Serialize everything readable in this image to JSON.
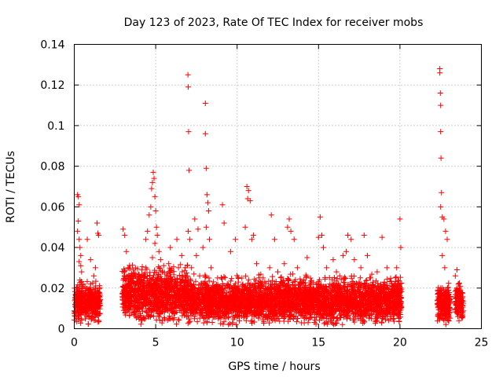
{
  "chart_data": {
    "type": "scatter",
    "title": "Day 123 of 2023, Rate Of TEC Index for receiver mobs",
    "xlabel": "GPS time / hours",
    "ylabel": "ROTI / TECUs",
    "xlim": [
      0,
      25
    ],
    "ylim": [
      0,
      0.14
    ],
    "xticks": [
      "0",
      "5",
      "10",
      "15",
      "20",
      "25"
    ],
    "yticks": [
      "0",
      "0.02",
      "0.04",
      "0.06",
      "0.08",
      "0.1",
      "0.12",
      "0.14"
    ],
    "grid": true,
    "marker": "+",
    "color": "#ff0000",
    "series": [
      {
        "points": [
          [
            0.05,
            0.012
          ],
          [
            0.1,
            0.008
          ],
          [
            0.15,
            0.02
          ],
          [
            0.2,
            0.016
          ],
          [
            0.25,
            0.005
          ],
          [
            0.3,
            0.014
          ],
          [
            0.35,
            0.024
          ],
          [
            0.4,
            0.018
          ],
          [
            0.45,
            0.01
          ],
          [
            0.5,
            0.015
          ],
          [
            0.55,
            0.022
          ],
          [
            0.6,
            0.012
          ],
          [
            0.7,
            0.009
          ],
          [
            0.8,
            0.014
          ],
          [
            0.9,
            0.011
          ],
          [
            1.0,
            0.018
          ],
          [
            1.1,
            0.013
          ],
          [
            1.2,
            0.008
          ],
          [
            1.3,
            0.02
          ],
          [
            1.4,
            0.012
          ],
          [
            0.2,
            0.066
          ],
          [
            0.25,
            0.065
          ],
          [
            0.3,
            0.061
          ],
          [
            0.25,
            0.053
          ],
          [
            0.2,
            0.048
          ],
          [
            0.3,
            0.044
          ],
          [
            0.35,
            0.04
          ],
          [
            0.4,
            0.036
          ],
          [
            0.3,
            0.033
          ],
          [
            0.45,
            0.028
          ],
          [
            0.4,
            0.031
          ],
          [
            0.8,
            0.044
          ],
          [
            1.0,
            0.034
          ],
          [
            1.2,
            0.026
          ],
          [
            1.4,
            0.052
          ],
          [
            1.45,
            0.047
          ],
          [
            1.5,
            0.046
          ],
          [
            1.3,
            0.03
          ],
          [
            1.45,
            0.008
          ],
          [
            1.5,
            0.004
          ],
          [
            3.0,
            0.049
          ],
          [
            3.1,
            0.046
          ],
          [
            3.2,
            0.038
          ],
          [
            3.3,
            0.03
          ],
          [
            3.0,
            0.014
          ],
          [
            3.2,
            0.018
          ],
          [
            3.4,
            0.011
          ],
          [
            3.6,
            0.02
          ],
          [
            3.8,
            0.014
          ],
          [
            4.0,
            0.025
          ],
          [
            4.2,
            0.018
          ],
          [
            4.4,
            0.03
          ],
          [
            4.6,
            0.022
          ],
          [
            4.8,
            0.035
          ],
          [
            4.0,
            0.01
          ],
          [
            3.5,
            0.008
          ],
          [
            4.6,
            0.056
          ],
          [
            4.7,
            0.06
          ],
          [
            4.75,
            0.069
          ],
          [
            4.8,
            0.072
          ],
          [
            4.85,
            0.077
          ],
          [
            4.9,
            0.074
          ],
          [
            4.95,
            0.065
          ],
          [
            5.0,
            0.058
          ],
          [
            5.05,
            0.05
          ],
          [
            5.1,
            0.046
          ],
          [
            4.95,
            0.042
          ],
          [
            5.2,
            0.038
          ],
          [
            5.3,
            0.034
          ],
          [
            4.5,
            0.048
          ],
          [
            4.4,
            0.044
          ],
          [
            5.2,
            0.02
          ],
          [
            5.4,
            0.028
          ],
          [
            5.6,
            0.015
          ],
          [
            5.8,
            0.032
          ],
          [
            6.0,
            0.024
          ],
          [
            6.2,
            0.018
          ],
          [
            6.4,
            0.03
          ],
          [
            6.6,
            0.036
          ],
          [
            6.8,
            0.02
          ],
          [
            5.5,
            0.012
          ],
          [
            6.1,
            0.009
          ],
          [
            6.5,
            0.012
          ],
          [
            5.9,
            0.04
          ],
          [
            6.3,
            0.044
          ],
          [
            6.98,
            0.125
          ],
          [
            7.0,
            0.119
          ],
          [
            7.02,
            0.097
          ],
          [
            7.05,
            0.078
          ],
          [
            7.0,
            0.048
          ],
          [
            7.1,
            0.044
          ],
          [
            7.2,
            0.03
          ],
          [
            7.3,
            0.02
          ],
          [
            7.5,
            0.036
          ],
          [
            7.6,
            0.049
          ],
          [
            7.4,
            0.054
          ],
          [
            7.7,
            0.026
          ],
          [
            7.9,
            0.04
          ],
          [
            8.05,
            0.111
          ],
          [
            8.05,
            0.096
          ],
          [
            8.1,
            0.079
          ],
          [
            8.15,
            0.066
          ],
          [
            8.2,
            0.062
          ],
          [
            8.25,
            0.058
          ],
          [
            8.1,
            0.05
          ],
          [
            8.3,
            0.044
          ],
          [
            8.4,
            0.03
          ],
          [
            8.6,
            0.02
          ],
          [
            8.8,
            0.025
          ],
          [
            9.0,
            0.018
          ],
          [
            8.5,
            0.012
          ],
          [
            9.1,
            0.061
          ],
          [
            9.2,
            0.052
          ],
          [
            9.6,
            0.038
          ],
          [
            9.9,
            0.044
          ],
          [
            9.4,
            0.022
          ],
          [
            9.7,
            0.015
          ],
          [
            10.0,
            0.02
          ],
          [
            10.2,
            0.012
          ],
          [
            10.6,
            0.07
          ],
          [
            10.7,
            0.068
          ],
          [
            10.65,
            0.064
          ],
          [
            10.8,
            0.063
          ],
          [
            10.5,
            0.05
          ],
          [
            10.9,
            0.044
          ],
          [
            11.0,
            0.046
          ],
          [
            11.2,
            0.032
          ],
          [
            11.4,
            0.02
          ],
          [
            11.6,
            0.025
          ],
          [
            11.8,
            0.016
          ],
          [
            12.0,
            0.03
          ],
          [
            12.1,
            0.056
          ],
          [
            12.3,
            0.044
          ],
          [
            12.5,
            0.028
          ],
          [
            12.7,
            0.018
          ],
          [
            12.9,
            0.032
          ],
          [
            13.1,
            0.05
          ],
          [
            13.2,
            0.054
          ],
          [
            13.3,
            0.048
          ],
          [
            13.5,
            0.044
          ],
          [
            13.7,
            0.03
          ],
          [
            13.9,
            0.02
          ],
          [
            14.1,
            0.024
          ],
          [
            14.3,
            0.035
          ],
          [
            14.5,
            0.016
          ],
          [
            14.7,
            0.012
          ],
          [
            15.0,
            0.045
          ],
          [
            15.2,
            0.046
          ],
          [
            15.1,
            0.055
          ],
          [
            15.3,
            0.04
          ],
          [
            15.5,
            0.03
          ],
          [
            15.7,
            0.022
          ],
          [
            15.9,
            0.034
          ],
          [
            16.1,
            0.028
          ],
          [
            16.3,
            0.026
          ],
          [
            16.5,
            0.036
          ],
          [
            16.7,
            0.038
          ],
          [
            16.8,
            0.046
          ],
          [
            17.0,
            0.044
          ],
          [
            17.2,
            0.034
          ],
          [
            17.4,
            0.022
          ],
          [
            17.6,
            0.03
          ],
          [
            17.8,
            0.046
          ],
          [
            18.0,
            0.036
          ],
          [
            18.2,
            0.025
          ],
          [
            18.4,
            0.02
          ],
          [
            18.6,
            0.028
          ],
          [
            18.9,
            0.045
          ],
          [
            19.2,
            0.03
          ],
          [
            19.5,
            0.022
          ],
          [
            19.8,
            0.03
          ],
          [
            20.0,
            0.054
          ],
          [
            20.05,
            0.04
          ],
          [
            16.0,
            0.012
          ],
          [
            17.0,
            0.015
          ],
          [
            18.0,
            0.01
          ],
          [
            19.0,
            0.014
          ],
          [
            20.0,
            0.012
          ],
          [
            15.5,
            0.005
          ],
          [
            16.5,
            0.008
          ],
          [
            18.5,
            0.006
          ],
          [
            19.5,
            0.016
          ],
          [
            22.45,
            0.128
          ],
          [
            22.45,
            0.126
          ],
          [
            22.48,
            0.116
          ],
          [
            22.5,
            0.11
          ],
          [
            22.5,
            0.097
          ],
          [
            22.52,
            0.084
          ],
          [
            22.55,
            0.067
          ],
          [
            22.5,
            0.06
          ],
          [
            22.6,
            0.055
          ],
          [
            22.7,
            0.054
          ],
          [
            22.8,
            0.048
          ],
          [
            22.9,
            0.044
          ],
          [
            22.6,
            0.036
          ],
          [
            22.75,
            0.03
          ],
          [
            22.6,
            0.02
          ],
          [
            22.8,
            0.015
          ],
          [
            22.5,
            0.012
          ],
          [
            23.0,
            0.01
          ],
          [
            22.4,
            0.006
          ],
          [
            22.7,
            0.004
          ],
          [
            23.4,
            0.026
          ],
          [
            23.5,
            0.029
          ],
          [
            23.6,
            0.022
          ],
          [
            23.7,
            0.018
          ],
          [
            23.5,
            0.012
          ],
          [
            23.6,
            0.008
          ],
          [
            23.8,
            0.014
          ],
          [
            23.55,
            0.006
          ]
        ],
        "dense_ranges": [
          {
            "x": [
              0.0,
              1.6
            ],
            "y_center": 0.013,
            "y_spread": 0.008
          },
          {
            "x": [
              2.95,
              7.0
            ],
            "y_center": 0.017,
            "y_spread": 0.011
          },
          {
            "x": [
              7.0,
              13.0
            ],
            "y_center": 0.014,
            "y_spread": 0.009
          },
          {
            "x": [
              13.0,
              20.1
            ],
            "y_center": 0.014,
            "y_spread": 0.009
          },
          {
            "x": [
              22.3,
              23.1
            ],
            "y_center": 0.012,
            "y_spread": 0.008
          },
          {
            "x": [
              23.4,
              23.9
            ],
            "y_center": 0.013,
            "y_spread": 0.007
          }
        ]
      }
    ]
  }
}
